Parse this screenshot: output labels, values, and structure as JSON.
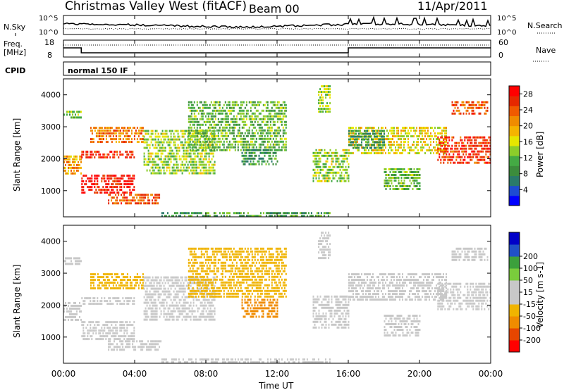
{
  "header": {
    "radar": "Christmas Valley West (fitACF)",
    "beam": "Beam 00",
    "date": "11/Apr/2011"
  },
  "noise_panel": {
    "left_label": "N.Sky",
    "right_label": "N.Search",
    "left_ticks": [
      "10^5",
      "10^0"
    ],
    "right_ticks": [
      "10^5",
      "10^0"
    ]
  },
  "freq_panel": {
    "left_label_1": "Freq.",
    "left_label_2": "[MHz]",
    "left_ticks": [
      "18",
      "8"
    ],
    "right_label": "Nave",
    "right_ticks": [
      "60",
      "0"
    ]
  },
  "cpid_panel": {
    "label": "CPID",
    "program": "normal 150 IF"
  },
  "colors": {
    "power": [
      "#0000ff",
      "#1e4bd2",
      "#2a7a6a",
      "#3c8c3c",
      "#44aa44",
      "#8ccd2a",
      "#e6e600",
      "#f5b400",
      "#f08c00",
      "#f05a00",
      "#e62800",
      "#ff0000"
    ],
    "velocity": [
      "#ff0000",
      "#e64600",
      "#f08c00",
      "#f0b400",
      "#c8c8c8",
      "#c8c8c8",
      "#7acc3c",
      "#3ca03c",
      "#2050c8",
      "#0000c8"
    ]
  },
  "chart_data": [
    {
      "type": "heatmap",
      "title": "Power",
      "ylabel": "Slant Range [km]",
      "y_ticks": [
        1000,
        2000,
        3000,
        4000
      ],
      "ylim": [
        180,
        4500
      ],
      "xlim": [
        0,
        24
      ],
      "colorbar_label": "Power [dB]",
      "colorbar_ticks": [
        4,
        8,
        12,
        16,
        20,
        24,
        28
      ],
      "colorbar_range": [
        0,
        30
      ],
      "bands": [
        {
          "t0": 0.0,
          "t1": 1.0,
          "r0": 1500,
          "r1": 2100,
          "value": 20
        },
        {
          "t0": 0.0,
          "t1": 1.0,
          "r0": 3250,
          "r1": 3500,
          "value": 12
        },
        {
          "t0": 1.0,
          "t1": 4.0,
          "r0": 900,
          "r1": 1500,
          "value": 28
        },
        {
          "t0": 1.0,
          "t1": 4.0,
          "r0": 2000,
          "r1": 2250,
          "value": 27
        },
        {
          "t0": 1.5,
          "t1": 4.5,
          "r0": 2500,
          "r1": 3000,
          "value": 22
        },
        {
          "t0": 2.5,
          "t1": 5.5,
          "r0": 550,
          "r1": 900,
          "value": 24
        },
        {
          "t0": 4.5,
          "t1": 8.5,
          "r0": 1500,
          "r1": 2900,
          "value": 14
        },
        {
          "t0": 7.0,
          "t1": 12.5,
          "r0": 2300,
          "r1": 3800,
          "value": 12
        },
        {
          "t0": 10.0,
          "t1": 12.0,
          "r0": 1800,
          "r1": 2300,
          "value": 9
        },
        {
          "t0": 14.0,
          "t1": 16.0,
          "r0": 1300,
          "r1": 2300,
          "value": 14
        },
        {
          "t0": 14.3,
          "t1": 15.0,
          "r0": 3500,
          "r1": 4300,
          "value": 14
        },
        {
          "t0": 16.0,
          "t1": 21.5,
          "r0": 2200,
          "r1": 3000,
          "value": 17
        },
        {
          "t0": 16.0,
          "t1": 18.0,
          "r0": 2300,
          "r1": 2900,
          "value": 9
        },
        {
          "t0": 18.0,
          "t1": 20.0,
          "r0": 1000,
          "r1": 1700,
          "value": 12
        },
        {
          "t0": 21.0,
          "t1": 24.0,
          "r0": 1900,
          "r1": 2700,
          "value": 26
        },
        {
          "t0": 21.8,
          "t1": 23.8,
          "r0": 3400,
          "r1": 3800,
          "value": 24
        },
        {
          "t0": 5.5,
          "t1": 15.0,
          "r0": 180,
          "r1": 330,
          "value": 10
        }
      ]
    },
    {
      "type": "heatmap",
      "title": "Velocity",
      "ylabel": "Slant Range [km]",
      "xlabel": "Time UT",
      "x_ticks": [
        "00:00",
        "04:00",
        "08:00",
        "12:00",
        "16:00",
        "20:00",
        "00:00"
      ],
      "y_ticks": [
        1000,
        2000,
        3000,
        4000
      ],
      "ylim": [
        180,
        4500
      ],
      "xlim": [
        0,
        24
      ],
      "colorbar_label": "Velocity [m s-1]",
      "colorbar_ticks": [
        -200,
        -100,
        -50,
        -15,
        15,
        50,
        100,
        200
      ],
      "bands": [
        {
          "t0": 0.0,
          "t1": 1.0,
          "r0": 1500,
          "r1": 2100,
          "value": 0
        },
        {
          "t0": 0.0,
          "t1": 1.0,
          "r0": 3250,
          "r1": 3500,
          "value": 0
        },
        {
          "t0": 1.0,
          "t1": 4.0,
          "r0": 900,
          "r1": 1500,
          "value": 0
        },
        {
          "t0": 1.0,
          "t1": 4.0,
          "r0": 2000,
          "r1": 2250,
          "value": 0
        },
        {
          "t0": 1.5,
          "t1": 4.5,
          "r0": 2500,
          "r1": 3000,
          "value": -30
        },
        {
          "t0": 2.5,
          "t1": 5.5,
          "r0": 550,
          "r1": 900,
          "value": 0
        },
        {
          "t0": 4.5,
          "t1": 8.5,
          "r0": 1500,
          "r1": 2900,
          "value": 0
        },
        {
          "t0": 7.0,
          "t1": 12.5,
          "r0": 2300,
          "r1": 3800,
          "value": -40
        },
        {
          "t0": 10.0,
          "t1": 12.0,
          "r0": 1600,
          "r1": 2200,
          "value": -70
        },
        {
          "t0": 14.0,
          "t1": 16.0,
          "r0": 1300,
          "r1": 2300,
          "value": 40
        },
        {
          "t0": 14.3,
          "t1": 15.0,
          "r0": 3500,
          "r1": 4300,
          "value": 40
        },
        {
          "t0": 16.0,
          "t1": 21.5,
          "r0": 2200,
          "r1": 3000,
          "value": 0
        },
        {
          "t0": 18.0,
          "t1": 20.0,
          "r0": 1000,
          "r1": 1700,
          "value": 0
        },
        {
          "t0": 21.0,
          "t1": 24.0,
          "r0": 1900,
          "r1": 2700,
          "value": 0
        },
        {
          "t0": 21.8,
          "t1": 23.8,
          "r0": 3400,
          "r1": 3800,
          "value": 40
        },
        {
          "t0": 5.5,
          "t1": 15.0,
          "r0": 180,
          "r1": 330,
          "value": 40
        }
      ]
    }
  ]
}
